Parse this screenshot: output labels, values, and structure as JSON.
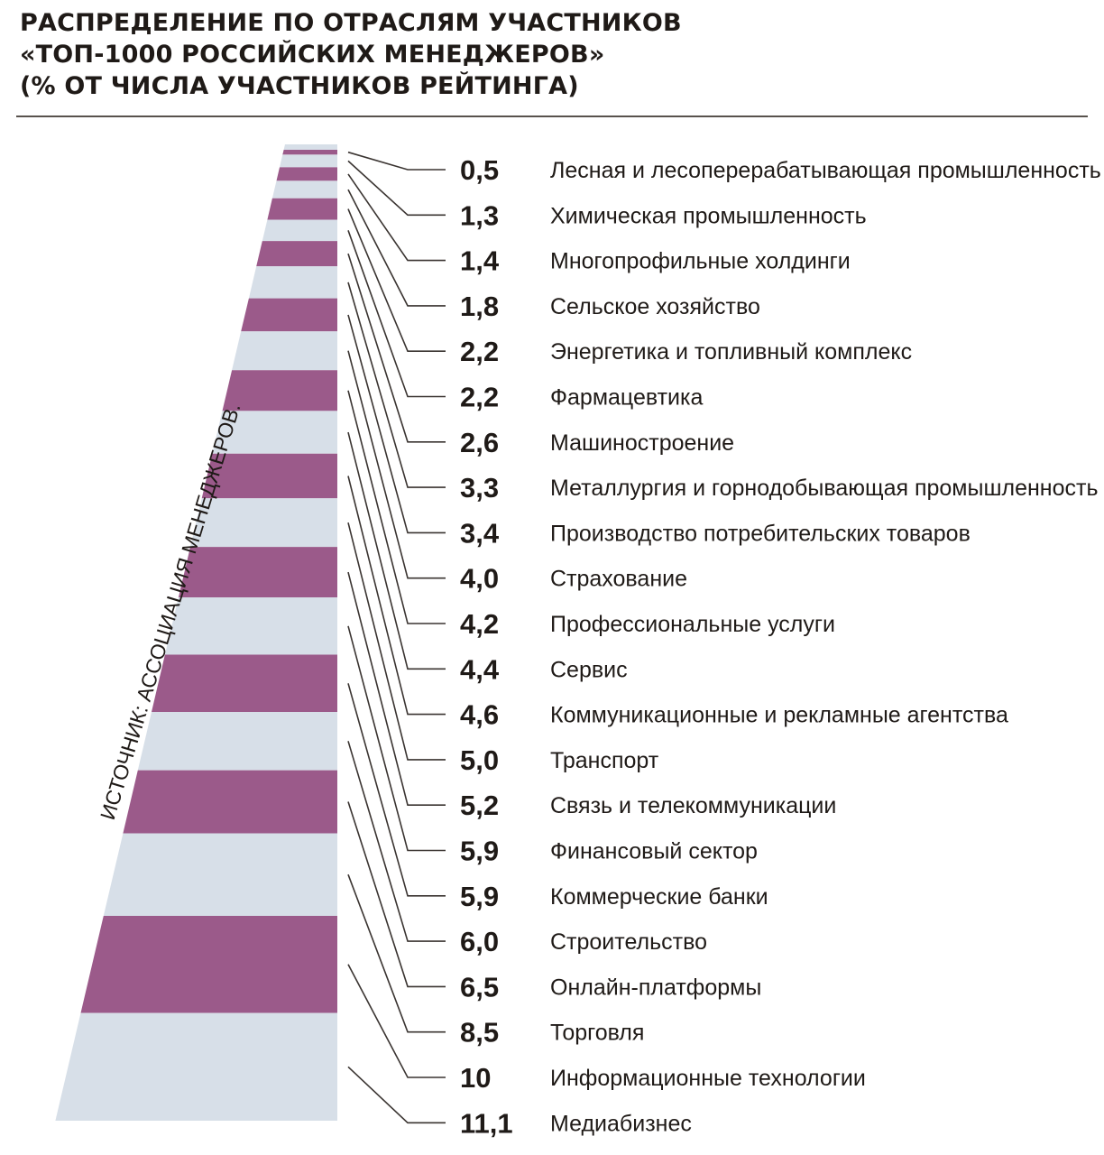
{
  "title_lines": [
    "РАСПРЕДЕЛЕНИЕ ПО ОТРАСЛЯМ УЧАСТНИКОВ",
    "«ТОП-1000 РОССИЙСКИХ МЕНЕДЖЕРОВ»",
    "(% ОТ ЧИСЛА УЧАСТНИКОВ РЕЙТИНГА)"
  ],
  "source": "ИСТОЧНИК: АССОЦИАЦИЯ МЕНЕДЖЕРОВ.",
  "colors": {
    "stripe_primary": "#9b5a8a",
    "stripe_secondary": "#d7dfe8",
    "leader_line": "#3a3431",
    "text": "#1f1a17"
  },
  "chart_data": {
    "type": "bar",
    "title": "РАСПРЕДЕЛЕНИЕ ПО ОТРАСЛЯМ УЧАСТНИКОВ «ТОП-1000 РОССИЙСКИХ МЕНЕДЖЕРОВ» (% ОТ ЧИСЛА УЧАСТНИКОВ РЕЙТИНГА)",
    "categories": [
      "Лесная и лесоперерабатывающая промышленность",
      "Химическая промышленность",
      "Многопрофильные холдинги",
      "Сельское хозяйство",
      "Энергетика и топливный комплекс",
      "Фармацевтика",
      "Машиностроение",
      "Металлургия и горнодобывающая промышленность",
      "Производство потребительских товаров",
      "Страхование",
      "Профессиональные услуги",
      "Сервис",
      "Коммуникационные и рекламные агентства",
      "Транспорт",
      "Связь и телекоммуникации",
      "Финансовый сектор",
      "Коммерческие банки",
      "Строительство",
      "Онлайн-платформы",
      "Торговля",
      "Информационные технологии",
      "Медиабизнес"
    ],
    "values": [
      0.5,
      1.3,
      1.4,
      1.8,
      2.2,
      2.2,
      2.6,
      3.3,
      3.4,
      4.0,
      4.2,
      4.4,
      4.6,
      5.0,
      5.2,
      5.9,
      5.9,
      6.0,
      6.5,
      8.5,
      10,
      11.1
    ],
    "value_labels": [
      "0,5",
      "1,3",
      "1,4",
      "1,8",
      "2,2",
      "2,2",
      "2,6",
      "3,3",
      "3,4",
      "4,0",
      "4,2",
      "4,4",
      "4,6",
      "5,0",
      "5,2",
      "5,9",
      "5,9",
      "6,0",
      "6,5",
      "8,5",
      "10",
      "11,1"
    ],
    "unit": "%",
    "legend": "none",
    "grid": false
  }
}
